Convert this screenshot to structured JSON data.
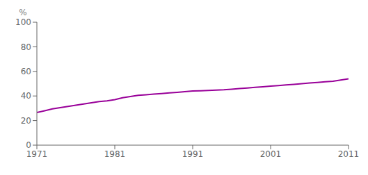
{
  "chart_data": {
    "type": "line",
    "x": [
      1971,
      1972,
      1973,
      1974,
      1975,
      1976,
      1977,
      1978,
      1979,
      1980,
      1981,
      1982,
      1983,
      1984,
      1985,
      1986,
      1987,
      1988,
      1989,
      1990,
      1991,
      1992,
      1993,
      1994,
      1995,
      1996,
      1997,
      1998,
      1999,
      2000,
      2001,
      2002,
      2003,
      2004,
      2005,
      2006,
      2007,
      2008,
      2009,
      2010,
      2011
    ],
    "values": [
      26.5,
      28.0,
      29.5,
      30.5,
      31.5,
      32.5,
      33.5,
      34.5,
      35.5,
      36.0,
      37.0,
      38.5,
      39.5,
      40.5,
      41.0,
      41.5,
      42.0,
      42.5,
      43.0,
      43.5,
      44.0,
      44.2,
      44.5,
      44.8,
      45.0,
      45.5,
      46.0,
      46.5,
      47.0,
      47.5,
      48.0,
      48.5,
      49.0,
      49.5,
      50.0,
      50.5,
      51.0,
      51.5,
      52.0,
      53.0,
      54.0
    ],
    "color": "#990099",
    "xlim": [
      1971,
      2011
    ],
    "ylim": [
      0,
      100
    ],
    "xticks": [
      1971,
      1981,
      1991,
      2001,
      2011
    ],
    "yticks": [
      0,
      20,
      40,
      60,
      80,
      100
    ],
    "ylabel": "%",
    "grid": false
  }
}
